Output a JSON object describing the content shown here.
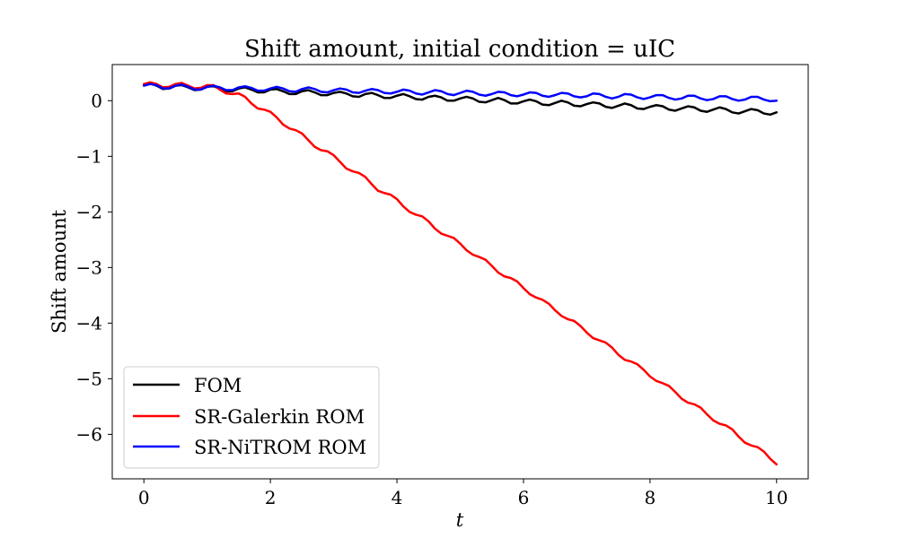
{
  "chart_data": {
    "type": "line",
    "title": "Shift amount, initial condition = uIC",
    "xlabel": "t",
    "ylabel": "Shift amount",
    "xlim": [
      -0.5,
      10.5
    ],
    "ylim": [
      -6.8,
      0.65
    ],
    "xticks": [
      0,
      2,
      4,
      6,
      8,
      10
    ],
    "yticks": [
      0,
      -1,
      -2,
      -3,
      -4,
      -5,
      -6
    ],
    "xtick_labels": [
      "0",
      "2",
      "4",
      "6",
      "8",
      "10"
    ],
    "ytick_labels": [
      "0",
      "−1",
      "−2",
      "−3",
      "−4",
      "−5",
      "−6"
    ],
    "grid": false,
    "legend_position": "lower-left",
    "x": [
      0,
      0.1,
      0.2,
      0.3,
      0.4,
      0.5,
      0.6,
      0.7,
      0.8,
      0.9,
      1.0,
      1.1,
      1.2,
      1.3,
      1.4,
      1.5,
      1.6,
      1.7,
      1.8,
      1.9,
      2.0,
      2.1,
      2.2,
      2.3,
      2.4,
      2.5,
      2.6,
      2.7,
      2.8,
      2.9,
      3.0,
      3.1,
      3.2,
      3.3,
      3.4,
      3.5,
      3.6,
      3.7,
      3.8,
      3.9,
      4.0,
      4.1,
      4.2,
      4.3,
      4.4,
      4.5,
      4.6,
      4.7,
      4.8,
      4.9,
      5.0,
      5.1,
      5.2,
      5.3,
      5.4,
      5.5,
      5.6,
      5.7,
      5.8,
      5.9,
      6.0,
      6.1,
      6.2,
      6.3,
      6.4,
      6.5,
      6.6,
      6.7,
      6.8,
      6.9,
      7.0,
      7.1,
      7.2,
      7.3,
      7.4,
      7.5,
      7.6,
      7.7,
      7.8,
      7.9,
      8.0,
      8.1,
      8.2,
      8.3,
      8.4,
      8.5,
      8.6,
      8.7,
      8.8,
      8.9,
      9.0,
      9.1,
      9.2,
      9.3,
      9.4,
      9.5,
      9.6,
      9.7,
      9.8,
      9.9,
      10.0
    ],
    "series": [
      {
        "name": "FOM",
        "color": "#000000",
        "values": [
          0.28,
          0.31,
          0.27,
          0.21,
          0.22,
          0.27,
          0.28,
          0.24,
          0.19,
          0.2,
          0.25,
          0.26,
          0.22,
          0.17,
          0.17,
          0.22,
          0.24,
          0.2,
          0.15,
          0.15,
          0.2,
          0.21,
          0.17,
          0.12,
          0.12,
          0.17,
          0.19,
          0.15,
          0.1,
          0.1,
          0.14,
          0.16,
          0.13,
          0.08,
          0.07,
          0.12,
          0.14,
          0.1,
          0.05,
          0.05,
          0.09,
          0.12,
          0.08,
          0.03,
          0.02,
          0.07,
          0.09,
          0.06,
          0.0,
          0.0,
          0.04,
          0.07,
          0.04,
          -0.02,
          -0.03,
          0.01,
          0.05,
          0.01,
          -0.05,
          -0.05,
          -0.01,
          0.02,
          -0.01,
          -0.07,
          -0.08,
          -0.04,
          0.0,
          -0.03,
          -0.09,
          -0.1,
          -0.06,
          -0.03,
          -0.05,
          -0.11,
          -0.13,
          -0.09,
          -0.05,
          -0.08,
          -0.14,
          -0.15,
          -0.11,
          -0.08,
          -0.1,
          -0.16,
          -0.18,
          -0.14,
          -0.1,
          -0.12,
          -0.18,
          -0.2,
          -0.16,
          -0.12,
          -0.15,
          -0.21,
          -0.23,
          -0.19,
          -0.15,
          -0.17,
          -0.23,
          -0.25,
          -0.21
        ]
      },
      {
        "name": "SR-Galerkin ROM",
        "color": "#ff0000",
        "values": [
          0.3,
          0.33,
          0.3,
          0.24,
          0.25,
          0.3,
          0.32,
          0.27,
          0.22,
          0.23,
          0.28,
          0.28,
          0.2,
          0.13,
          0.12,
          0.13,
          0.07,
          -0.05,
          -0.14,
          -0.16,
          -0.2,
          -0.3,
          -0.43,
          -0.5,
          -0.53,
          -0.59,
          -0.71,
          -0.83,
          -0.89,
          -0.91,
          -0.98,
          -1.1,
          -1.22,
          -1.27,
          -1.3,
          -1.37,
          -1.5,
          -1.62,
          -1.66,
          -1.69,
          -1.77,
          -1.9,
          -2.0,
          -2.05,
          -2.08,
          -2.17,
          -2.3,
          -2.39,
          -2.43,
          -2.47,
          -2.57,
          -2.69,
          -2.77,
          -2.81,
          -2.86,
          -2.97,
          -3.09,
          -3.16,
          -3.19,
          -3.25,
          -3.37,
          -3.48,
          -3.54,
          -3.58,
          -3.65,
          -3.77,
          -3.87,
          -3.93,
          -3.96,
          -4.05,
          -4.17,
          -4.27,
          -4.31,
          -4.35,
          -4.44,
          -4.57,
          -4.66,
          -4.69,
          -4.74,
          -4.84,
          -4.96,
          -5.04,
          -5.08,
          -5.13,
          -5.24,
          -5.36,
          -5.43,
          -5.46,
          -5.52,
          -5.64,
          -5.75,
          -5.81,
          -5.84,
          -5.91,
          -6.04,
          -6.15,
          -6.2,
          -6.23,
          -6.31,
          -6.44,
          -6.54
        ]
      },
      {
        "name": "SR-NiTROM ROM",
        "color": "#0000ff",
        "values": [
          0.27,
          0.3,
          0.28,
          0.22,
          0.22,
          0.27,
          0.29,
          0.25,
          0.2,
          0.2,
          0.25,
          0.27,
          0.24,
          0.19,
          0.19,
          0.24,
          0.26,
          0.23,
          0.18,
          0.18,
          0.22,
          0.25,
          0.22,
          0.17,
          0.16,
          0.21,
          0.24,
          0.21,
          0.16,
          0.15,
          0.19,
          0.22,
          0.2,
          0.15,
          0.14,
          0.18,
          0.21,
          0.19,
          0.14,
          0.13,
          0.16,
          0.2,
          0.18,
          0.13,
          0.11,
          0.15,
          0.19,
          0.17,
          0.12,
          0.1,
          0.14,
          0.18,
          0.16,
          0.11,
          0.09,
          0.12,
          0.16,
          0.15,
          0.1,
          0.08,
          0.11,
          0.15,
          0.14,
          0.09,
          0.07,
          0.1,
          0.14,
          0.13,
          0.08,
          0.06,
          0.08,
          0.13,
          0.12,
          0.07,
          0.04,
          0.07,
          0.12,
          0.11,
          0.06,
          0.03,
          0.06,
          0.1,
          0.1,
          0.05,
          0.02,
          0.04,
          0.09,
          0.09,
          0.04,
          0.01,
          0.03,
          0.08,
          0.08,
          0.03,
          0.0,
          0.02,
          0.07,
          0.07,
          0.02,
          -0.01,
          0.0
        ]
      }
    ]
  }
}
